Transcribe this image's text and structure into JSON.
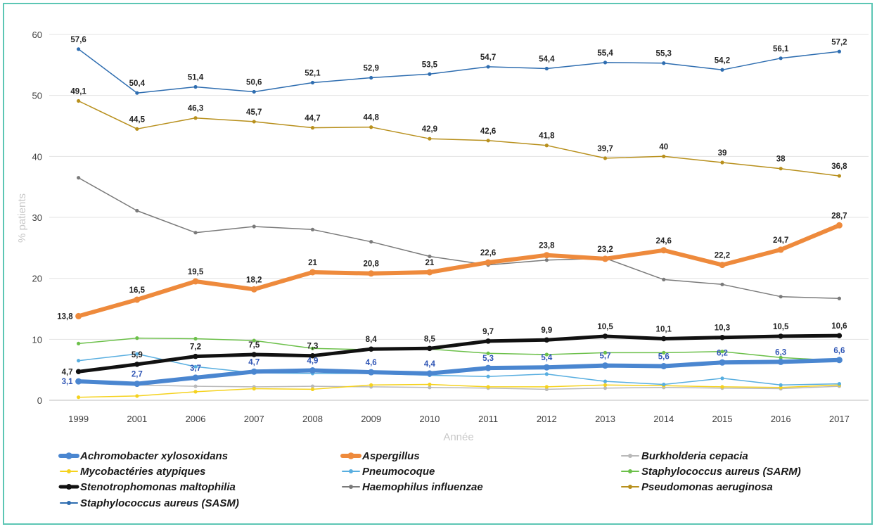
{
  "chart_data": {
    "type": "line",
    "title": "",
    "xlabel": "Année",
    "ylabel": "% patients",
    "ylim": [
      0,
      60
    ],
    "yticks": [
      0,
      10,
      20,
      30,
      40,
      50,
      60
    ],
    "grid": true,
    "legend_position": "bottom",
    "categories": [
      "1999",
      "2001",
      "2006",
      "2007",
      "2008",
      "2009",
      "2010",
      "2011",
      "2012",
      "2013",
      "2014",
      "2015",
      "2016",
      "2017"
    ],
    "series": [
      {
        "name": "Achromobacter xylosoxidans",
        "color": "#4a86d0",
        "width": 6,
        "values": [
          3.1,
          2.7,
          3.7,
          4.7,
          4.9,
          4.6,
          4.4,
          5.3,
          5.4,
          5.7,
          5.6,
          6.2,
          6.3,
          6.6
        ],
        "labels": [
          "3,1",
          "2,7",
          "3,7",
          "4,7",
          "4,9",
          "4,6",
          "4,4",
          "5,3",
          "5,4",
          "5,7",
          "5,6",
          "6,2",
          "6,3",
          "6,6"
        ],
        "label_color": "#2f55b5"
      },
      {
        "name": "Aspergillus",
        "color": "#ee8a3c",
        "width": 6,
        "values": [
          13.8,
          16.5,
          19.5,
          18.2,
          21,
          20.8,
          21,
          22.6,
          23.8,
          23.2,
          24.6,
          22.2,
          24.7,
          28.7
        ],
        "labels": [
          "13,8",
          "16,5",
          "19,5",
          "18,2",
          "21",
          "20,8",
          "21",
          "22,6",
          "23,8",
          "23,2",
          "24,6",
          "22,2",
          "24,7",
          "28,7"
        ],
        "label_color": "#222222"
      },
      {
        "name": "Burkholderia cepacia",
        "color": "#b9b9b9",
        "width": 1.5,
        "values": [
          3.0,
          2.5,
          2.3,
          2.2,
          2.3,
          2.2,
          2.1,
          2.0,
          1.8,
          2.0,
          2.1,
          2.0,
          1.9,
          2.3
        ]
      },
      {
        "name": "Mycobactéries atypiques",
        "color": "#f5d21e",
        "width": 1.5,
        "values": [
          0.5,
          0.7,
          1.4,
          1.9,
          1.8,
          2.5,
          2.6,
          2.2,
          2.2,
          2.5,
          2.4,
          2.2,
          2.1,
          2.5
        ]
      },
      {
        "name": "Pneumocoque",
        "color": "#58aee0",
        "width": 1.5,
        "values": [
          6.5,
          7.6,
          5.5,
          4.5,
          4.4,
          4.4,
          4.1,
          3.9,
          4.3,
          3.1,
          2.6,
          3.6,
          2.5,
          2.7
        ]
      },
      {
        "name": "Staphylococcus aureus (SARM)",
        "color": "#6cc04a",
        "width": 1.5,
        "values": [
          9.3,
          10.2,
          10.1,
          9.8,
          8.5,
          8.3,
          8.4,
          7.7,
          7.5,
          7.8,
          7.8,
          8.0,
          7.0,
          6.5
        ]
      },
      {
        "name": "Stenotrophomonas maltophilia",
        "color": "#111111",
        "width": 5,
        "values": [
          4.7,
          5.9,
          7.2,
          7.5,
          7.3,
          8.4,
          8.5,
          9.7,
          9.9,
          10.5,
          10.1,
          10.3,
          10.5,
          10.6
        ],
        "labels": [
          "4,7",
          "5,9",
          "7,2",
          "7,5",
          "7,3",
          "8,4",
          "8,5",
          "9,7",
          "9,9",
          "10,5",
          "10,1",
          "10,3",
          "10,5",
          "10,6"
        ],
        "label_color": "#222222"
      },
      {
        "name": "Haemophilus influenzae",
        "color": "#7a7a7a",
        "width": 1.5,
        "values": [
          36.5,
          31.1,
          27.5,
          28.5,
          28.0,
          26.0,
          23.6,
          22.2,
          23.0,
          23.3,
          19.8,
          19.0,
          17.0,
          16.7
        ]
      },
      {
        "name": "Pseudomonas aeruginosa",
        "color": "#b8901d",
        "width": 1.5,
        "values": [
          49.1,
          44.5,
          46.3,
          45.7,
          44.7,
          44.8,
          42.9,
          42.6,
          41.8,
          39.7,
          40,
          39,
          38,
          36.8
        ],
        "labels": [
          "49,1",
          "44,5",
          "46,3",
          "45,7",
          "44,7",
          "44,8",
          "42,9",
          "42,6",
          "41,8",
          "39,7",
          "40",
          "39",
          "38",
          "36,8"
        ],
        "label_color": "#222222"
      },
      {
        "name": "Staphylococcus aureus (SASM)",
        "color": "#2e6db0",
        "width": 1.5,
        "values": [
          57.6,
          50.4,
          51.4,
          50.6,
          52.1,
          52.9,
          53.5,
          54.7,
          54.4,
          55.4,
          55.3,
          54.2,
          56.1,
          57.2
        ],
        "labels": [
          "57,6",
          "50,4",
          "51,4",
          "50,6",
          "52,1",
          "52,9",
          "53,5",
          "54,7",
          "54,4",
          "55,4",
          "55,3",
          "54,2",
          "56,1",
          "57,2"
        ],
        "label_color": "#222222"
      }
    ],
    "draw_order": [
      2,
      3,
      4,
      5,
      7,
      9,
      8,
      0,
      6,
      1
    ]
  }
}
